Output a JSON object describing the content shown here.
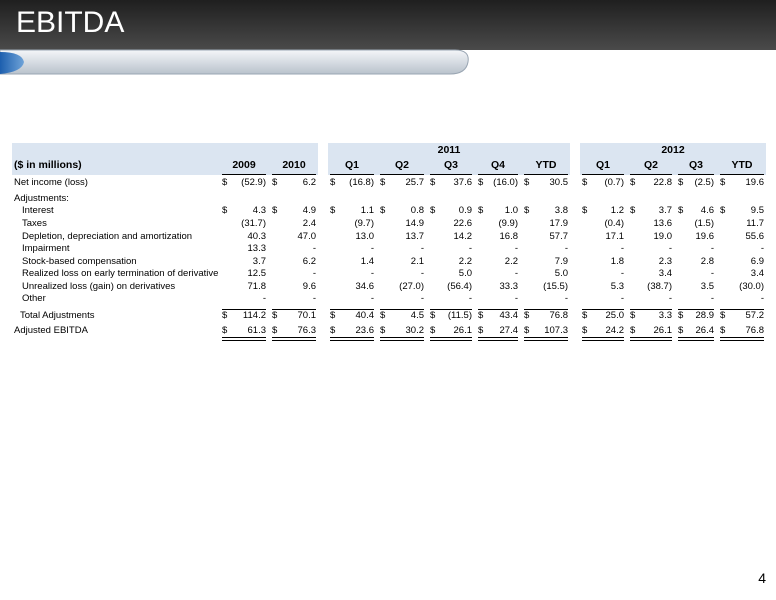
{
  "header": {
    "title": "EBITDA"
  },
  "table": {
    "unit_label": "($ in millions)",
    "currency_symbol": "$",
    "year_groups": [
      "2011",
      "2012"
    ],
    "columns": [
      "2009",
      "2010",
      "Q1",
      "Q2",
      "Q3",
      "Q4",
      "YTD",
      "Q1",
      "Q2",
      "Q3",
      "YTD"
    ],
    "rows": [
      {
        "label": "Net income (loss)",
        "level": 0,
        "dollar": true,
        "values": [
          "(52.9)",
          "6.2",
          "(16.8)",
          "25.7",
          "37.6",
          "(16.0)",
          "30.5",
          "(0.7)",
          "22.8",
          "(2.5)",
          "19.6"
        ]
      },
      {
        "label": "Adjustments:",
        "level": 0,
        "dollar": false,
        "values": []
      },
      {
        "label": "Interest",
        "level": 1,
        "dollar": true,
        "values": [
          "4.3",
          "4.9",
          "1.1",
          "0.8",
          "0.9",
          "1.0",
          "3.8",
          "1.2",
          "3.7",
          "4.6",
          "9.5"
        ]
      },
      {
        "label": "Taxes",
        "level": 1,
        "dollar": false,
        "values": [
          "(31.7)",
          "2.4",
          "(9.7)",
          "14.9",
          "22.6",
          "(9.9)",
          "17.9",
          "(0.4)",
          "13.6",
          "(1.5)",
          "11.7"
        ]
      },
      {
        "label": "Depletion, depreciation and amortization",
        "level": 1,
        "dollar": false,
        "values": [
          "40.3",
          "47.0",
          "13.0",
          "13.7",
          "14.2",
          "16.8",
          "57.7",
          "17.1",
          "19.0",
          "19.6",
          "55.6"
        ]
      },
      {
        "label": "Impairment",
        "level": 1,
        "dollar": false,
        "values": [
          "13.3",
          "-",
          "-",
          "-",
          "-",
          "-",
          "-",
          "-",
          "-",
          "-",
          "-"
        ]
      },
      {
        "label": "Stock-based compensation",
        "level": 1,
        "dollar": false,
        "values": [
          "3.7",
          "6.2",
          "1.4",
          "2.1",
          "2.2",
          "2.2",
          "7.9",
          "1.8",
          "2.3",
          "2.8",
          "6.9"
        ]
      },
      {
        "label": "Realized loss on early termination of derivative",
        "level": 1,
        "dollar": false,
        "values": [
          "12.5",
          "-",
          "-",
          "-",
          "5.0",
          "-",
          "5.0",
          "-",
          "3.4",
          "-",
          "3.4"
        ]
      },
      {
        "label": "Unrealized loss (gain) on derivatives",
        "level": 1,
        "dollar": false,
        "values": [
          "71.8",
          "9.6",
          "34.6",
          "(27.0)",
          "(56.4)",
          "33.3",
          "(15.5)",
          "5.3",
          "(38.7)",
          "3.5",
          "(30.0)"
        ]
      },
      {
        "label": "Other",
        "level": 1,
        "dollar": false,
        "values": [
          "-",
          "-",
          "-",
          "-",
          "-",
          "-",
          "-",
          "-",
          "-",
          "-",
          "-"
        ]
      },
      {
        "label": "Total Adjustments",
        "level": 2,
        "dollar": true,
        "rule": "above",
        "values": [
          "114.2",
          "70.1",
          "40.4",
          "4.5",
          "(11.5)",
          "43.4",
          "76.8",
          "25.0",
          "3.3",
          "28.9",
          "57.2"
        ]
      },
      {
        "label": "Adjusted EBITDA",
        "level": 0,
        "dollar": true,
        "rule": "double_below",
        "values": [
          "61.3",
          "76.3",
          "23.6",
          "30.2",
          "26.1",
          "27.4",
          "107.3",
          "24.2",
          "26.1",
          "26.4",
          "76.8"
        ]
      }
    ]
  },
  "page_number": "4"
}
